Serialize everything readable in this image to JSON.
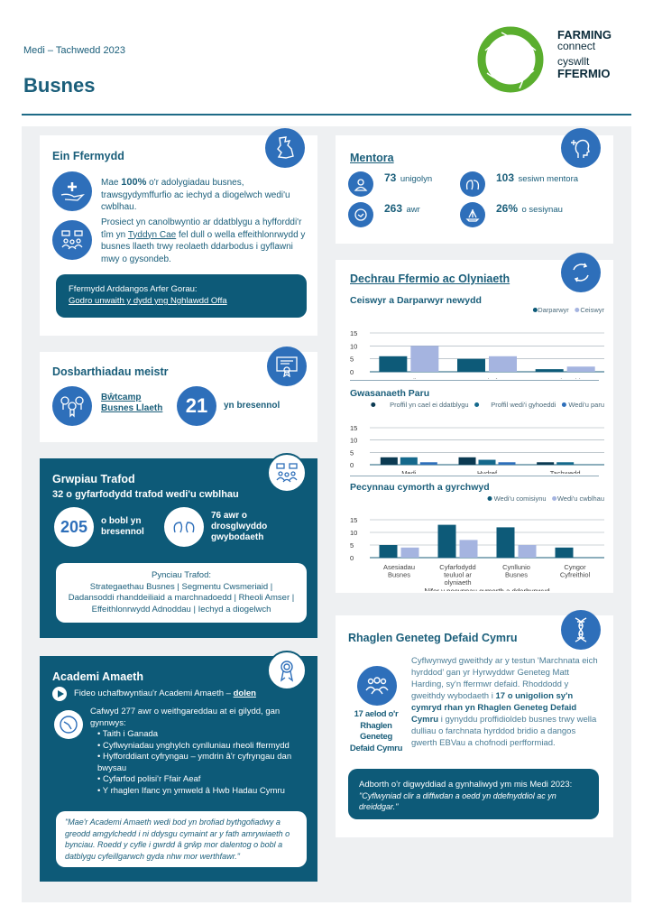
{
  "header": {
    "period": "Medi – Tachwedd  2023",
    "title": "Busnes",
    "logo": {
      "line1": "FARMING",
      "line2": "connect",
      "line3": "cyswllt",
      "line4": "FFERMIO"
    },
    "accent": "#1a5e7a",
    "icon_blue": "#2e6fba",
    "logo_green": "#5aae2e"
  },
  "ein_ffermydd": {
    "title": "Ein Ffermydd",
    "icon": "wales-map-icon",
    "item1": {
      "pre": "Mae ",
      "bold": "100%",
      "post": " o'r adolygiadau busnes, trawsgydymffurfio ac iechyd a diogelwch wedi'u cwblhau.",
      "icon": "hand-plus-icon"
    },
    "item2": {
      "pre": "Prosiect yn canolbwyntio ar ddatblygu a hyfforddi'r tîm yn ",
      "link": "Tyddyn Cae",
      "post": " fel dull o wella effeithlonrwydd y busnes llaeth trwy reolaeth ddarbodus i gyflawni mwy o gysondeb.",
      "icon": "group-discussion-icon"
    },
    "box": {
      "label": "Ffermydd Arddangos Arfer Gorau:",
      "link": "Godro unwaith y dydd yng Nghlawdd Offa"
    }
  },
  "dosbarthiadau": {
    "title": "Dosbarthiadau meistr",
    "link1": "Bŵtcamp",
    "link2": "Busnes Llaeth",
    "count": "21",
    "count_label": "yn bresennol"
  },
  "grwpiau": {
    "title": "Grwpiau Trafod",
    "subtitle": "32 o gyfarfodydd trafod wedi'u cwblhau",
    "people": "205",
    "people_label1": "o bobl yn",
    "people_label2": "bresennol",
    "hours_label1": "76 awr o",
    "hours_label2": "drosglwyddo",
    "hours_label3": "gwybodaeth",
    "topics_title": "Pynciau Trafod:",
    "topics_line1": "Strategaethau Busnes | Segmentu Cwsmeriaid |",
    "topics_line2": "Dadansoddi rhanddeiliaid a marchnadoedd | Rheoli Amser |",
    "topics_line3": "Effeithlonrwydd Adnoddau | Iechyd a diogelwch"
  },
  "academi": {
    "title": "Academi Amaeth",
    "video_text": "Fideo uchafbwyntiau'r Academi Amaeth – ",
    "video_link": "dolen",
    "intro": "Cafwyd 277 awr o weithgareddau at ei gilydd, gan gynnwys:",
    "bullets": [
      "Taith i Ganada",
      "Cyflwyniadau ynghylch cynlluniau rheoli ffermydd",
      "Hyfforddiant cyfryngau – ymdrin â'r cyfryngau dan bwysau",
      "Cyfarfod polisi'r Ffair Aeaf",
      "Y rhaglen Ifanc yn ymweld â Hwb Hadau Cymru"
    ],
    "quote": "\"Mae'r Academi Amaeth wedi bod yn brofiad bythgofiadwy a greodd amgylchedd i ni ddysgu cymaint ar y fath amrywiaeth o bynciau. Roedd y cyfle i gwrdd â grŵp mor dalentog o bobl a datblygu cyfeillgarwch gyda nhw mor werthfawr.\""
  },
  "mentora": {
    "title": "Mentora",
    "stats": [
      {
        "value": "73",
        "label": "unigolyn",
        "icon": "person-icon"
      },
      {
        "value": "103",
        "label": "sesiwn mentora",
        "icon": "conversation-heads-icon"
      },
      {
        "value": "263",
        "label": "awr",
        "icon": "clock-icon"
      },
      {
        "value": "26%",
        "label": "o sesiynau",
        "icon": "boat-icon"
      }
    ]
  },
  "dechrau": {
    "title": "Dechrau Ffermio ac Olyniaeth"
  },
  "chart_data": [
    {
      "type": "bar",
      "title": "Ceiswyr a Darparwyr newydd",
      "categories": [
        "Medi",
        "Hydref",
        "Tachwedd"
      ],
      "ylim": [
        0,
        15
      ],
      "yticks": [
        0,
        5,
        10,
        15
      ],
      "grid": true,
      "legend": "top-right",
      "series": [
        {
          "name": "Darparwyr",
          "values": [
            6,
            5,
            1
          ],
          "color": "#0d5a78"
        },
        {
          "name": "Ceiswyr",
          "values": [
            10,
            6,
            2
          ],
          "color": "#a5b4e0"
        }
      ]
    },
    {
      "type": "bar",
      "title": "Gwasanaeth Paru",
      "categories": [
        "Medi",
        "Hydref",
        "Tachwedd"
      ],
      "ylim": [
        0,
        15
      ],
      "yticks": [
        0,
        5,
        10,
        15
      ],
      "grid": true,
      "legend": "top-right",
      "series": [
        {
          "name": "Proffil yn cael ei ddatblygu",
          "values": [
            3,
            3,
            1
          ],
          "color": "#0b3a52"
        },
        {
          "name": "Proffil wedi'i gyhoeddi",
          "values": [
            3,
            2,
            1
          ],
          "color": "#15698c"
        },
        {
          "name": "Wedi'u paru",
          "values": [
            1,
            1,
            0
          ],
          "color": "#2e6fba"
        }
      ]
    },
    {
      "type": "bar",
      "title": "Pecynnau cymorth a gyrchwyd",
      "xlabel": "Nifer y pecynnau cymorth a dderbynwyd",
      "categories": [
        [
          "Asesiadau",
          "Busnes"
        ],
        [
          "Cyfarfodydd",
          "teuluol ar",
          "olyniaeth"
        ],
        [
          "Cynllunio",
          "Busnes"
        ],
        [
          "Cyngor",
          "Cyfreithiol"
        ]
      ],
      "ylim": [
        0,
        15
      ],
      "yticks": [
        0,
        5,
        10,
        15
      ],
      "grid": true,
      "legend": "top-right",
      "series": [
        {
          "name": "Wedi'u comisiynu",
          "values": [
            5,
            13,
            12,
            4
          ],
          "color": "#0d5a78"
        },
        {
          "name": "Wedi'u cwblhau",
          "values": [
            4,
            7,
            5,
            0
          ],
          "color": "#a5b4e0"
        }
      ]
    }
  ],
  "geneteg": {
    "title": "Rhaglen Geneteg Defaid Cymru",
    "side1": "17 aelod o'r",
    "side2": "Rhaglen",
    "side3": "Geneteg",
    "side4": "Defaid Cymru",
    "pre": "Cyflwynwyd gweithdy ar y testun 'Marchnata eich hyrddod' gan yr Hyrwyddwr Geneteg Matt Harding, sy'n ffermwr defaid. Rhoddodd y gweithdy wybodaeth i ",
    "bold": "17 o unigolion sy'n cymryd rhan yn Rhaglen Geneteg Defaid Cymru",
    "post": " i gynyddu proffidioldeb busnes trwy wella dulliau o farchnata hyrddod bridio a dangos gwerth EBVau a chofnodi perfformiad.",
    "feedback_label": "Adborth o'r digwyddiad a gynhaliwyd ym mis Medi 2023:",
    "feedback_quote": "\"Cyflwyniad clir a diffwdan a oedd yn ddefnyddiol ac yn dreiddgar.\""
  }
}
